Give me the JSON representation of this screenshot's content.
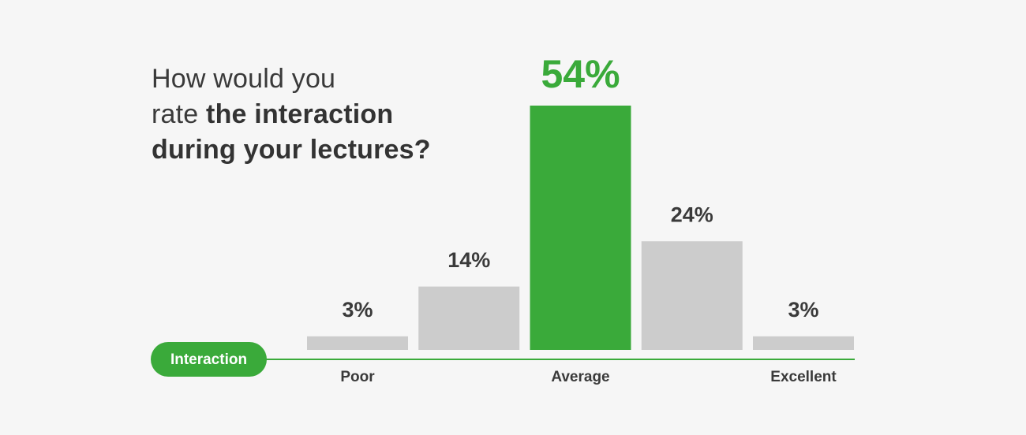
{
  "chart_data": {
    "type": "bar",
    "title": [
      "How would you",
      "rate",
      "the interaction",
      "during your lectures?"
    ],
    "xlabel": "Interaction",
    "categories": [
      "Poor",
      null,
      "Average",
      null,
      "Excellent"
    ],
    "values": [
      3,
      14,
      54,
      24,
      3
    ],
    "value_labels": [
      "3%",
      "14%",
      "54%",
      "24%",
      "3%"
    ],
    "color": "#cccccc",
    "highlight_index": 2,
    "highlight_color": "#3aaa3a"
  }
}
